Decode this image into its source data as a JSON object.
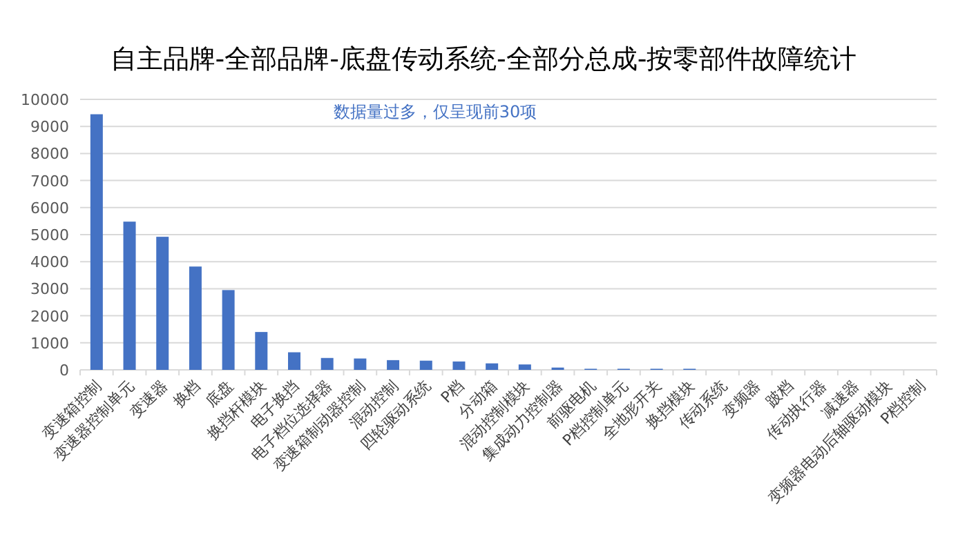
{
  "chart_data": {
    "type": "bar",
    "title": "自主品牌-全部品牌-底盘传动系统-全部分总成-按零部件故障统计",
    "annotations": [
      "数据量过多，仅呈现前30项"
    ],
    "categories": [
      "变速箱控制",
      "变速器控制单元",
      "变速器",
      "换档",
      "底盘",
      "换挡杆模块",
      "电子换挡",
      "电子档位选择器",
      "变速箱制动器控制",
      "混动控制",
      "四轮驱动系统",
      "P档",
      "分动箱",
      "混动控制模块",
      "集成动力控制器",
      "前驱电机",
      "P档控制单元",
      "全地形开关",
      "换挡模块",
      "传动系统",
      "变频器",
      "跛档",
      "传动执行器",
      "减速器",
      "变频器电动后轴驱动模块",
      "P档控制"
    ],
    "values": [
      9450,
      5480,
      4920,
      3820,
      2950,
      1400,
      650,
      440,
      420,
      360,
      340,
      310,
      240,
      200,
      85,
      40,
      40,
      40,
      40,
      0,
      0,
      0,
      0,
      0,
      0,
      0
    ],
    "color": "#4472c4",
    "ylim": [
      0,
      10000
    ],
    "yticks": [
      0,
      1000,
      2000,
      3000,
      4000,
      5000,
      6000,
      7000,
      8000,
      9000,
      10000
    ],
    "grid": "y"
  }
}
